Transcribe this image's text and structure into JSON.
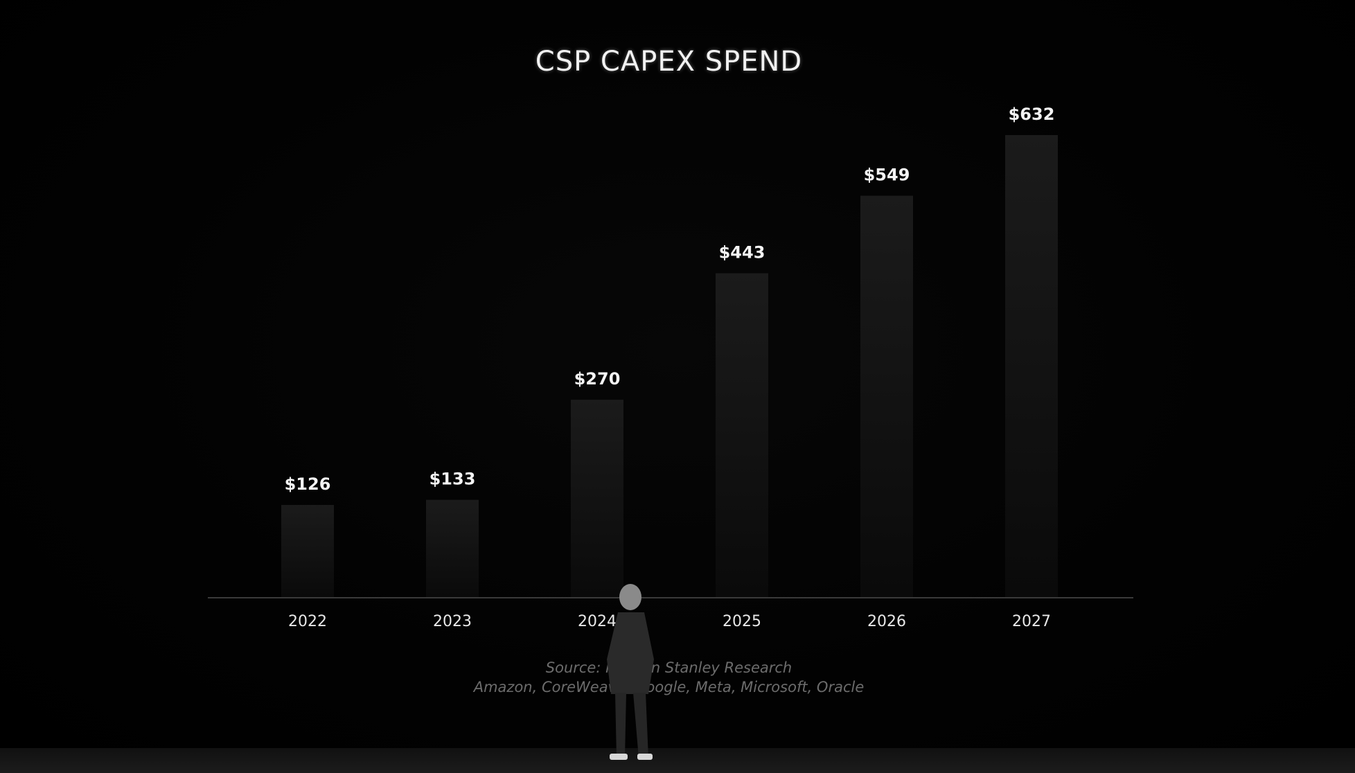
{
  "chart_data": {
    "type": "bar",
    "title": "CSP CAPEX SPEND",
    "categories": [
      "2022",
      "2023",
      "2024",
      "2025",
      "2026",
      "2027"
    ],
    "values": [
      126,
      133,
      270,
      443,
      549,
      632
    ],
    "value_labels": [
      "$126",
      "$133",
      "$270",
      "$443",
      "$549",
      "$632"
    ],
    "ylim": [
      0,
      632
    ],
    "grid": false,
    "legend": "none"
  },
  "footer": {
    "source_line1": "Source: Morgan Stanley Research",
    "source_line2": "Amazon, CoreWeave, Google, Meta, Microsoft, Oracle"
  },
  "colors": {
    "background": "#000000",
    "bar_top": "#1a1a1a",
    "bar_bottom": "#0b0b0b",
    "axis": "#3a3a3a",
    "text": "#f2f2f2"
  }
}
